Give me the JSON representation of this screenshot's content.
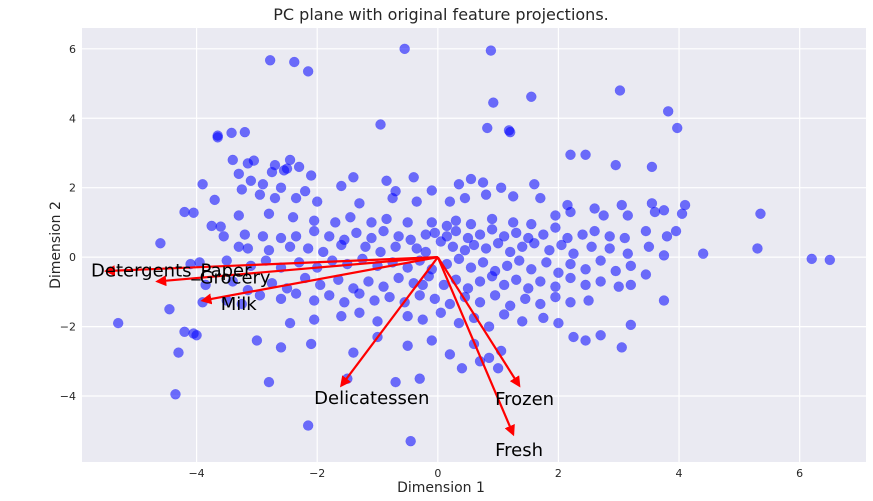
{
  "chart_data": {
    "type": "scatter",
    "title": "PC plane with original feature projections.",
    "xlabel": "Dimension 1",
    "ylabel": "Dimension 2",
    "xlim": [
      -5.9,
      7.1
    ],
    "ylim": [
      -5.9,
      6.6
    ],
    "x_ticks": [
      -4,
      -2,
      0,
      2,
      4,
      6
    ],
    "y_ticks": [
      -4,
      -2,
      0,
      2,
      4,
      6
    ],
    "grid": true,
    "point_color": "#0000ff",
    "arrow_color": "#ff0000",
    "background_color": "#eaeaf2",
    "points": [
      [
        -0.55,
        6.0
      ],
      [
        0.88,
        5.95
      ],
      [
        -2.78,
        5.67
      ],
      [
        -2.38,
        5.62
      ],
      [
        -2.15,
        5.35
      ],
      [
        1.55,
        4.62
      ],
      [
        3.02,
        4.8
      ],
      [
        0.92,
        4.45
      ],
      [
        3.82,
        4.2
      ],
      [
        3.97,
        3.72
      ],
      [
        0.82,
        3.72
      ],
      [
        1.18,
        3.65
      ],
      [
        -0.95,
        3.82
      ],
      [
        1.2,
        3.6
      ],
      [
        -3.2,
        3.6
      ],
      [
        -3.65,
        3.5
      ],
      [
        -3.42,
        3.58
      ],
      [
        -3.65,
        3.45
      ],
      [
        -3.4,
        2.8
      ],
      [
        -3.05,
        2.78
      ],
      [
        -3.15,
        2.7
      ],
      [
        -2.45,
        2.8
      ],
      [
        -2.7,
        2.65
      ],
      [
        -2.5,
        2.55
      ],
      [
        -2.3,
        2.6
      ],
      [
        -2.1,
        2.35
      ],
      [
        -1.4,
        2.3
      ],
      [
        -0.85,
        2.2
      ],
      [
        -0.4,
        2.3
      ],
      [
        -2.55,
        2.5
      ],
      [
        -2.75,
        2.45
      ],
      [
        -3.3,
        2.4
      ],
      [
        -3.1,
        2.2
      ],
      [
        -2.9,
        2.1
      ],
      [
        -2.6,
        2.0
      ],
      [
        -2.2,
        1.9
      ],
      [
        -1.6,
        2.05
      ],
      [
        -0.7,
        1.9
      ],
      [
        -0.1,
        1.92
      ],
      [
        0.35,
        2.1
      ],
      [
        0.55,
        2.25
      ],
      [
        0.75,
        2.15
      ],
      [
        1.05,
        2.0
      ],
      [
        1.6,
        2.1
      ],
      [
        2.2,
        2.95
      ],
      [
        2.45,
        2.95
      ],
      [
        2.95,
        2.65
      ],
      [
        3.55,
        2.6
      ],
      [
        -3.9,
        2.1
      ],
      [
        -3.7,
        1.65
      ],
      [
        -3.25,
        1.95
      ],
      [
        -2.95,
        1.8
      ],
      [
        -2.7,
        1.7
      ],
      [
        -2.35,
        1.7
      ],
      [
        -2.0,
        1.6
      ],
      [
        -1.3,
        1.55
      ],
      [
        -0.75,
        1.7
      ],
      [
        -0.35,
        1.6
      ],
      [
        0.2,
        1.6
      ],
      [
        0.45,
        1.7
      ],
      [
        0.8,
        1.8
      ],
      [
        1.25,
        1.75
      ],
      [
        1.7,
        1.7
      ],
      [
        2.15,
        1.5
      ],
      [
        2.6,
        1.4
      ],
      [
        3.05,
        1.5
      ],
      [
        3.55,
        1.55
      ],
      [
        3.75,
        1.35
      ],
      [
        4.1,
        1.5
      ],
      [
        -4.2,
        1.3
      ],
      [
        -4.05,
        1.28
      ],
      [
        -3.3,
        1.2
      ],
      [
        -2.8,
        1.25
      ],
      [
        -2.4,
        1.15
      ],
      [
        -2.05,
        1.05
      ],
      [
        -1.7,
        1.0
      ],
      [
        -1.45,
        1.15
      ],
      [
        -1.1,
        1.0
      ],
      [
        -0.85,
        1.1
      ],
      [
        -0.5,
        1.0
      ],
      [
        -0.1,
        1.0
      ],
      [
        0.3,
        1.05
      ],
      [
        0.55,
        0.95
      ],
      [
        0.9,
        1.1
      ],
      [
        1.25,
        1.0
      ],
      [
        1.55,
        0.95
      ],
      [
        1.95,
        1.2
      ],
      [
        2.2,
        1.3
      ],
      [
        2.75,
        1.2
      ],
      [
        3.15,
        1.2
      ],
      [
        3.6,
        1.3
      ],
      [
        4.05,
        1.25
      ],
      [
        5.35,
        1.25
      ],
      [
        -4.6,
        0.4
      ],
      [
        -3.6,
        0.88
      ],
      [
        -3.75,
        0.9
      ],
      [
        -3.55,
        0.6
      ],
      [
        -3.2,
        0.65
      ],
      [
        -2.9,
        0.6
      ],
      [
        -2.6,
        0.55
      ],
      [
        -2.35,
        0.6
      ],
      [
        -2.05,
        0.75
      ],
      [
        -1.8,
        0.6
      ],
      [
        -1.55,
        0.5
      ],
      [
        -1.35,
        0.7
      ],
      [
        -1.1,
        0.55
      ],
      [
        -0.9,
        0.75
      ],
      [
        -0.65,
        0.6
      ],
      [
        -0.45,
        0.5
      ],
      [
        -0.2,
        0.65
      ],
      [
        -0.05,
        0.7
      ],
      [
        0.15,
        0.6
      ],
      [
        0.3,
        0.75
      ],
      [
        0.5,
        0.55
      ],
      [
        0.7,
        0.65
      ],
      [
        0.9,
        0.8
      ],
      [
        1.1,
        0.6
      ],
      [
        1.3,
        0.7
      ],
      [
        1.5,
        0.55
      ],
      [
        1.75,
        0.65
      ],
      [
        1.95,
        0.85
      ],
      [
        2.15,
        0.55
      ],
      [
        2.4,
        0.65
      ],
      [
        2.6,
        0.75
      ],
      [
        2.85,
        0.6
      ],
      [
        3.1,
        0.55
      ],
      [
        3.45,
        0.75
      ],
      [
        3.8,
        0.6
      ],
      [
        3.95,
        0.75
      ],
      [
        -3.15,
        0.25
      ],
      [
        -3.3,
        0.3
      ],
      [
        -2.8,
        0.2
      ],
      [
        -2.45,
        0.3
      ],
      [
        -2.15,
        0.25
      ],
      [
        -1.9,
        0.15
      ],
      [
        -1.6,
        0.35
      ],
      [
        -1.2,
        0.3
      ],
      [
        -0.95,
        0.15
      ],
      [
        -0.7,
        0.3
      ],
      [
        -0.35,
        0.25
      ],
      [
        -0.2,
        0.15
      ],
      [
        0.05,
        0.45
      ],
      [
        0.25,
        0.3
      ],
      [
        0.45,
        0.2
      ],
      [
        0.6,
        0.35
      ],
      [
        0.8,
        0.25
      ],
      [
        1.0,
        0.4
      ],
      [
        1.2,
        0.15
      ],
      [
        1.4,
        0.3
      ],
      [
        1.6,
        0.4
      ],
      [
        1.85,
        0.2
      ],
      [
        2.05,
        0.35
      ],
      [
        2.25,
        0.1
      ],
      [
        2.55,
        0.3
      ],
      [
        2.85,
        0.25
      ],
      [
        3.15,
        0.1
      ],
      [
        3.5,
        0.3
      ],
      [
        3.75,
        0.05
      ],
      [
        4.4,
        0.1
      ],
      [
        5.3,
        0.25
      ],
      [
        6.2,
        -0.05
      ],
      [
        6.5,
        -0.08
      ],
      [
        -4.1,
        -0.2
      ],
      [
        -3.95,
        -0.15
      ],
      [
        -3.5,
        -0.1
      ],
      [
        -3.1,
        -0.25
      ],
      [
        -2.85,
        -0.1
      ],
      [
        -2.6,
        -0.3
      ],
      [
        -2.3,
        -0.15
      ],
      [
        -2.0,
        -0.3
      ],
      [
        -1.75,
        -0.1
      ],
      [
        -1.5,
        -0.2
      ],
      [
        -1.25,
        -0.05
      ],
      [
        -1.0,
        -0.25
      ],
      [
        -0.75,
        -0.15
      ],
      [
        -0.5,
        -0.3
      ],
      [
        -0.3,
        -0.1
      ],
      [
        -0.1,
        -0.35
      ],
      [
        0.15,
        -0.2
      ],
      [
        0.35,
        -0.05
      ],
      [
        0.55,
        -0.3
      ],
      [
        0.75,
        -0.15
      ],
      [
        0.95,
        -0.4
      ],
      [
        1.15,
        -0.25
      ],
      [
        1.35,
        -0.1
      ],
      [
        1.55,
        -0.35
      ],
      [
        1.8,
        -0.15
      ],
      [
        2.0,
        -0.45
      ],
      [
        2.2,
        -0.2
      ],
      [
        2.45,
        -0.35
      ],
      [
        2.7,
        -0.1
      ],
      [
        2.95,
        -0.4
      ],
      [
        3.2,
        -0.25
      ],
      [
        3.45,
        -0.5
      ],
      [
        -3.85,
        -0.8
      ],
      [
        -3.4,
        -0.7
      ],
      [
        -3.15,
        -0.95
      ],
      [
        -2.75,
        -0.75
      ],
      [
        -2.5,
        -0.9
      ],
      [
        -2.2,
        -0.6
      ],
      [
        -1.95,
        -0.8
      ],
      [
        -1.65,
        -0.65
      ],
      [
        -1.4,
        -0.9
      ],
      [
        -1.15,
        -0.7
      ],
      [
        -0.9,
        -0.85
      ],
      [
        -0.65,
        -0.6
      ],
      [
        -0.4,
        -0.75
      ],
      [
        -0.15,
        -0.55
      ],
      [
        0.1,
        -0.8
      ],
      [
        0.3,
        -0.65
      ],
      [
        0.5,
        -0.9
      ],
      [
        0.7,
        -0.7
      ],
      [
        0.9,
        -0.55
      ],
      [
        1.1,
        -0.8
      ],
      [
        1.3,
        -0.65
      ],
      [
        1.5,
        -0.9
      ],
      [
        1.7,
        -0.7
      ],
      [
        1.95,
        -0.85
      ],
      [
        2.2,
        -0.6
      ],
      [
        2.45,
        -0.8
      ],
      [
        2.7,
        -0.7
      ],
      [
        3.0,
        -0.85
      ],
      [
        3.2,
        -0.8
      ],
      [
        3.75,
        -1.25
      ],
      [
        -4.45,
        -1.5
      ],
      [
        -3.9,
        -1.3
      ],
      [
        -3.5,
        -1.25
      ],
      [
        -3.25,
        -1.35
      ],
      [
        -2.95,
        -1.1
      ],
      [
        -2.6,
        -1.2
      ],
      [
        -2.35,
        -1.05
      ],
      [
        -2.05,
        -1.25
      ],
      [
        -1.8,
        -1.1
      ],
      [
        -1.55,
        -1.3
      ],
      [
        -1.3,
        -1.05
      ],
      [
        -1.05,
        -1.25
      ],
      [
        -0.8,
        -1.15
      ],
      [
        -0.55,
        -1.3
      ],
      [
        -0.3,
        -1.1
      ],
      [
        -0.05,
        -1.2
      ],
      [
        0.2,
        -1.35
      ],
      [
        0.45,
        -1.15
      ],
      [
        0.7,
        -1.3
      ],
      [
        0.95,
        -1.1
      ],
      [
        1.2,
        -1.4
      ],
      [
        1.45,
        -1.2
      ],
      [
        1.7,
        -1.35
      ],
      [
        1.95,
        -1.15
      ],
      [
        2.2,
        -1.3
      ],
      [
        2.5,
        -1.25
      ],
      [
        -5.3,
        -1.9
      ],
      [
        -4.2,
        -2.15
      ],
      [
        -4.05,
        -2.2
      ],
      [
        -4.0,
        -2.25
      ],
      [
        -2.45,
        -1.9
      ],
      [
        -2.05,
        -1.8
      ],
      [
        -1.6,
        -1.7
      ],
      [
        -1.3,
        -1.6
      ],
      [
        -1.0,
        -1.85
      ],
      [
        -0.5,
        -1.7
      ],
      [
        -0.25,
        -1.8
      ],
      [
        0.05,
        -1.6
      ],
      [
        0.35,
        -1.9
      ],
      [
        0.6,
        -1.75
      ],
      [
        0.85,
        -2.0
      ],
      [
        1.1,
        -1.65
      ],
      [
        1.4,
        -1.85
      ],
      [
        1.75,
        -1.75
      ],
      [
        2.0,
        -1.9
      ],
      [
        3.2,
        -1.95
      ],
      [
        -4.3,
        -2.75
      ],
      [
        -3.0,
        -2.4
      ],
      [
        -2.6,
        -2.6
      ],
      [
        -2.1,
        -2.5
      ],
      [
        -1.4,
        -2.75
      ],
      [
        -1.0,
        -2.3
      ],
      [
        -0.5,
        -2.55
      ],
      [
        -0.1,
        -2.4
      ],
      [
        0.2,
        -2.8
      ],
      [
        0.6,
        -2.5
      ],
      [
        0.85,
        -2.9
      ],
      [
        1.05,
        -2.7
      ],
      [
        2.25,
        -2.3
      ],
      [
        2.45,
        -2.4
      ],
      [
        2.7,
        -2.25
      ],
      [
        3.05,
        -2.6
      ],
      [
        -2.8,
        -3.6
      ],
      [
        -1.5,
        -3.5
      ],
      [
        -0.7,
        -3.6
      ],
      [
        -0.3,
        -3.5
      ],
      [
        0.4,
        -3.2
      ],
      [
        0.7,
        -3.0
      ],
      [
        1.0,
        -3.2
      ],
      [
        -4.35,
        -3.95
      ],
      [
        -2.15,
        -4.85
      ],
      [
        -0.45,
        -5.3
      ],
      [
        -0.25,
        -0.8
      ],
      [
        0.15,
        0.9
      ]
    ],
    "feature_vectors": [
      {
        "name": "Detergents_Paper",
        "dx": -5.5,
        "dy": -0.4,
        "label_x": -5.75,
        "label_y": -0.38
      },
      {
        "name": "Grocery",
        "dx": -4.65,
        "dy": -0.7,
        "label_x": -3.95,
        "label_y": -0.58
      },
      {
        "name": "Milk",
        "dx": -3.9,
        "dy": -1.25,
        "label_x": -3.6,
        "label_y": -1.35
      },
      {
        "name": "Delicatessen",
        "dx": -1.6,
        "dy": -3.7,
        "label_x": -2.05,
        "label_y": -4.05
      },
      {
        "name": "Frozen",
        "dx": 1.35,
        "dy": -3.7,
        "label_x": 0.95,
        "label_y": -4.08
      },
      {
        "name": "Fresh",
        "dx": 1.25,
        "dy": -5.1,
        "label_x": 0.95,
        "label_y": -5.55
      }
    ]
  }
}
